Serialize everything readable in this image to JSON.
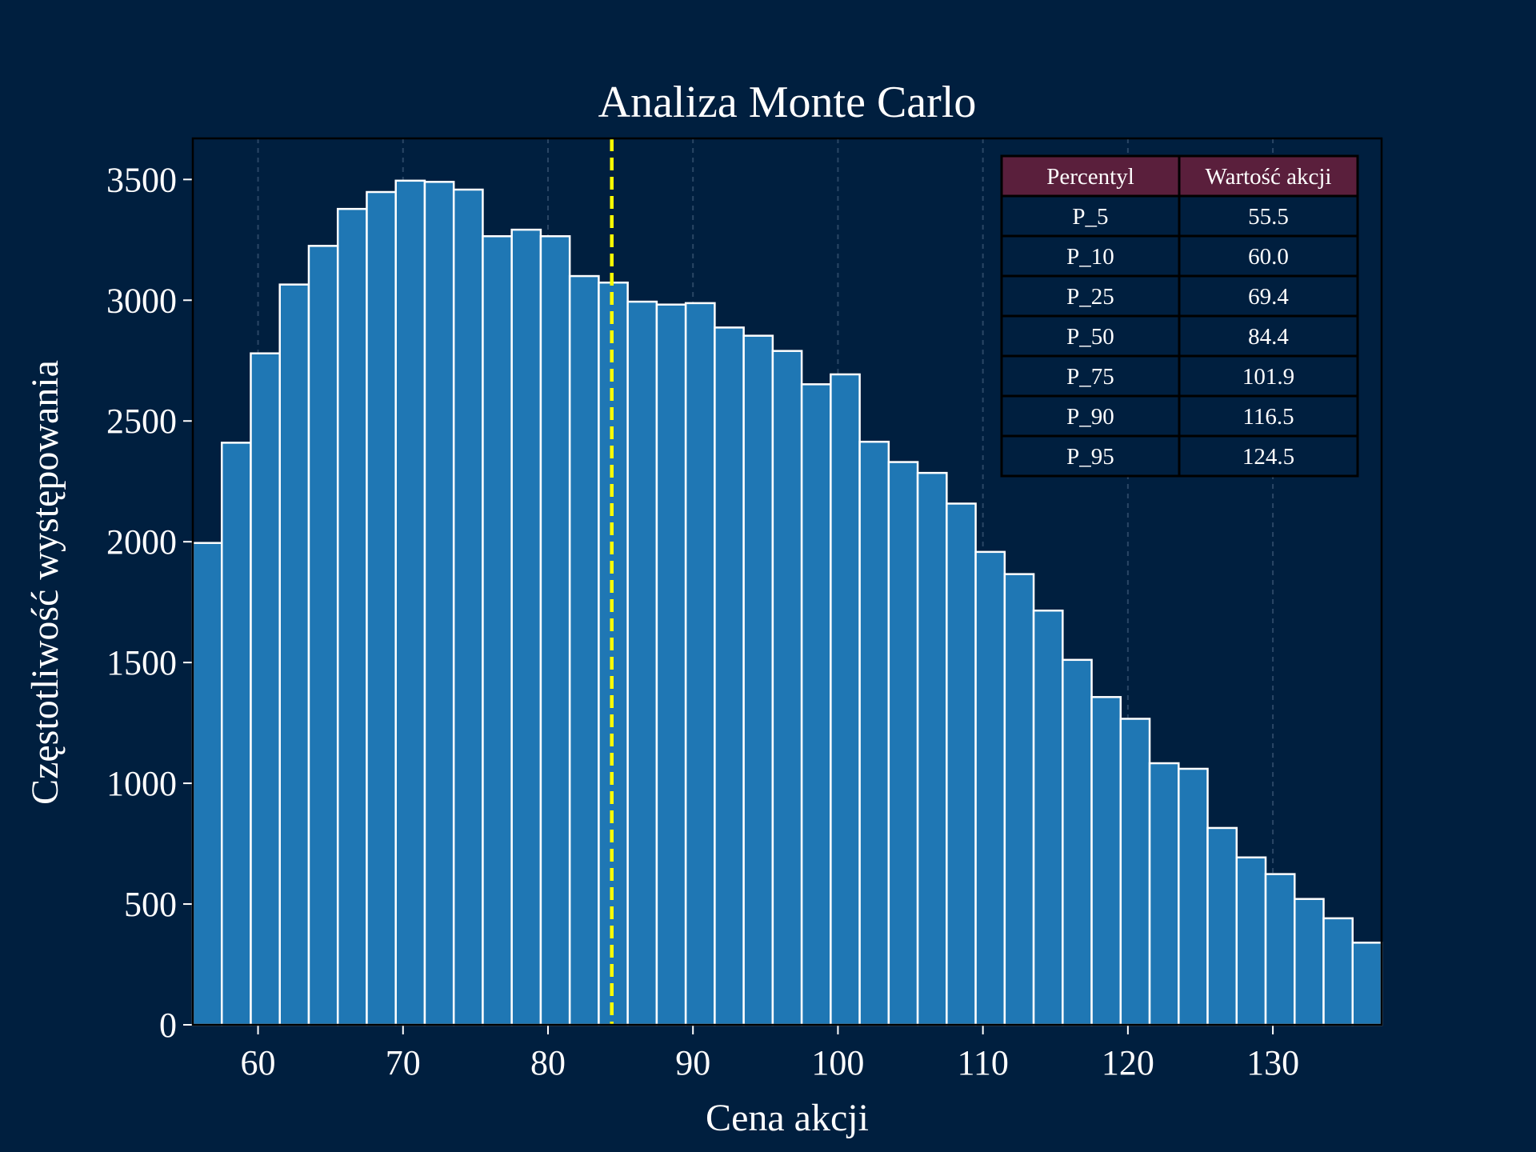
{
  "chart_data": {
    "type": "bar",
    "title": "Analiza Monte Carlo",
    "xlabel": "Cena akcji",
    "ylabel": "Częstotliwość występowania",
    "xlim": [
      55.5,
      137.5
    ],
    "ylim": [
      0,
      3670
    ],
    "xticks": [
      "60",
      "70",
      "80",
      "90",
      "100",
      "110",
      "120",
      "130"
    ],
    "yticks": [
      "0",
      "500",
      "1000",
      "1500",
      "2000",
      "2500",
      "3000",
      "3500"
    ],
    "bin_start": 55.5,
    "bin_width": 2.0,
    "values": [
      1995,
      2410,
      2780,
      3065,
      3225,
      3378,
      3448,
      3495,
      3490,
      3458,
      3265,
      3292,
      3265,
      3100,
      3073,
      2994,
      2982,
      2988,
      2887,
      2853,
      2790,
      2652,
      2693,
      2414,
      2330,
      2285,
      2158,
      1958,
      1866,
      1715,
      1511,
      1357,
      1267,
      1083,
      1060,
      815,
      693,
      624,
      521,
      441,
      340
    ],
    "bar_color": "#1f77b4",
    "bar_edge_color": "#ffffff",
    "median_line": {
      "x": 84.4,
      "color": "#ffff00",
      "style": "dashed"
    },
    "grid": "x-only, dashed",
    "legend": "none",
    "colors": {
      "background": "#001f3f",
      "table_header": "#5a1f3c",
      "table_cell": "#001f3f"
    },
    "table": {
      "position": "top-right",
      "headers": [
        "Percentyl",
        "Wartość akcji"
      ],
      "rows": [
        [
          "P_5",
          "55.5"
        ],
        [
          "P_10",
          "60.0"
        ],
        [
          "P_25",
          "69.4"
        ],
        [
          "P_50",
          "84.4"
        ],
        [
          "P_75",
          "101.9"
        ],
        [
          "P_90",
          "116.5"
        ],
        [
          "P_95",
          "124.5"
        ]
      ]
    }
  }
}
